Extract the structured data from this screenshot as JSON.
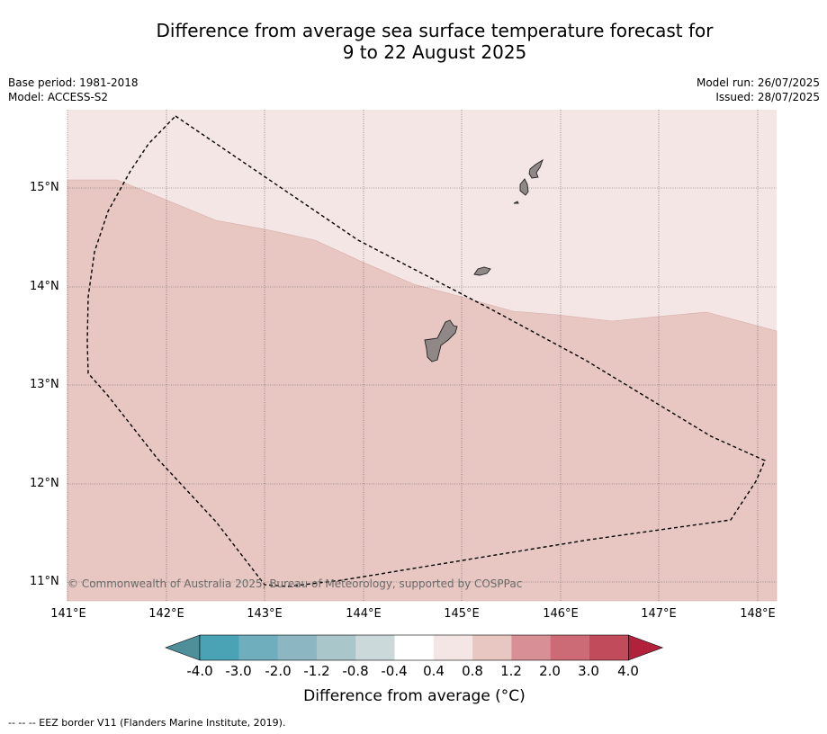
{
  "title": {
    "line1": "Difference from average sea surface temperature forecast for",
    "line2": "9 to 22 August 2025"
  },
  "meta": {
    "base_period": "Base period: 1981-2018",
    "model": "Model: ACCESS-S2",
    "model_run": "Model run: 26/07/2025",
    "issued": "Issued: 28/07/2025"
  },
  "map": {
    "latitude_labels": [
      "15°N",
      "14°N",
      "13°N",
      "12°N",
      "11°N"
    ],
    "longitude_labels": [
      "141°E",
      "142°E",
      "143°E",
      "144°E",
      "145°E",
      "146°E",
      "147°E",
      "148°E"
    ],
    "extent": {
      "lon": [
        141.0,
        148.2
      ],
      "lat": [
        10.8,
        15.8
      ]
    },
    "anomaly_colors": {
      "0.4 to 0.8": "#f4e6e5",
      "0.8 to 1.2": "#e8c7c3"
    },
    "land_color": "#8f8887",
    "copyright": "© Commonwealth of Australia 2025, Bureau of Meteorology, supported by COSPPac"
  },
  "colorbar": {
    "title": "Difference from average (°C)",
    "labels": [
      "-4.0",
      "-3.0",
      "-2.0",
      "-1.2",
      "-0.8",
      "-0.4",
      "0.4",
      "0.8",
      "1.2",
      "2.0",
      "3.0",
      "4.0"
    ],
    "colors": [
      "#4e8f9a",
      "#4aa3b4",
      "#6eaebd",
      "#8cb7c2",
      "#a9c6cb",
      "#ccd9da",
      "#ffffff",
      "#f4e6e5",
      "#e8c7c3",
      "#d98f96",
      "#cc6a76",
      "#c14b5a",
      "#b0223c"
    ]
  },
  "footnote": "--  --  -- EEZ border V11 (Flanders Marine Institute, 2019)."
}
